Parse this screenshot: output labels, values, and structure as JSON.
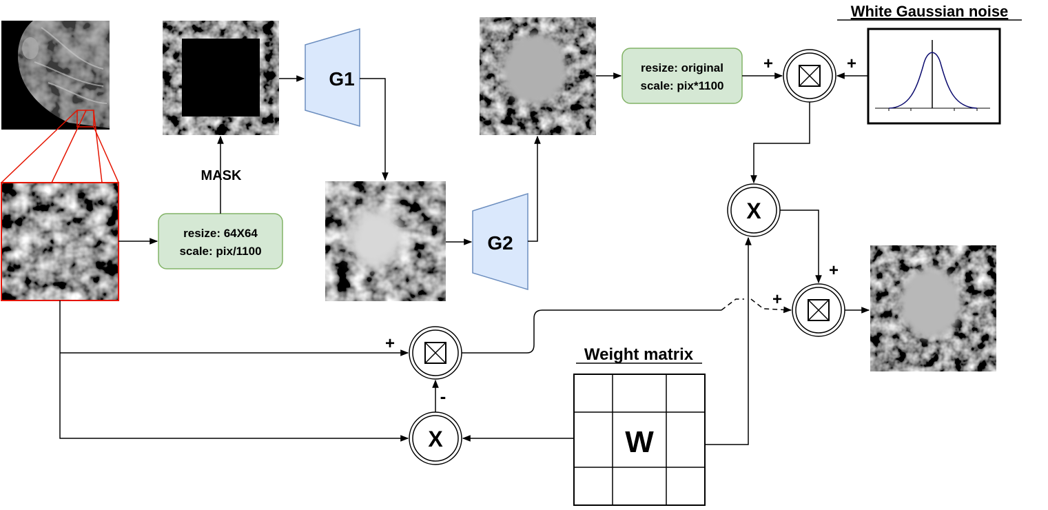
{
  "labels": {
    "noise_title": "White Gaussian noise",
    "weight_title": "Weight matrix",
    "mask": "MASK",
    "g1": "G1",
    "g2": "G2",
    "w": "W",
    "mult": "X",
    "plus": "+",
    "minus": "-"
  },
  "boxes": {
    "resize_in_line1": "resize: 64X64",
    "resize_in_line2": "scale: pix/1100",
    "resize_out_line1": "resize: original",
    "resize_out_line2": "scale: pix*1100"
  },
  "colors": {
    "green_fill": "#d5e8d4",
    "green_stroke": "#82b366",
    "blue_fill": "#dae8fc",
    "blue_stroke": "#6c8ebf",
    "crop_outline": "#e51400",
    "curve": "#0b0b6e"
  }
}
